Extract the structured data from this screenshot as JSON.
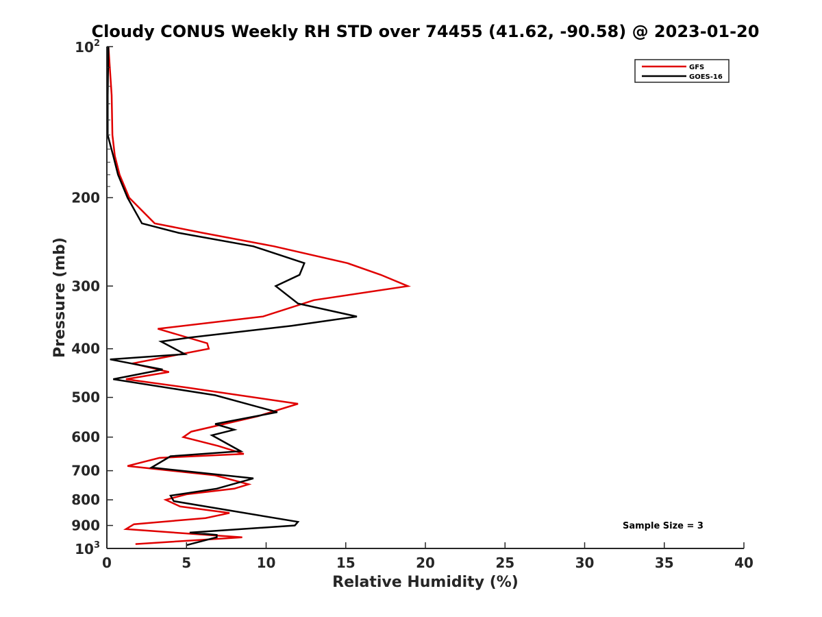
{
  "chart_data": {
    "type": "line",
    "title": "Cloudy CONUS Weekly RH STD over 74455 (41.62, -90.58) @ 2023-01-20",
    "xlabel": "Relative Humidity (%)",
    "ylabel": "Pressure (mb)",
    "xlim": [
      0,
      40
    ],
    "ylim": [
      100,
      1000
    ],
    "y_scale": "log",
    "y_reversed": true,
    "x_ticks": [
      "0",
      "5",
      "10",
      "15",
      "20",
      "25",
      "30",
      "35",
      "40"
    ],
    "y_ticks": [
      {
        "value": 100,
        "base": "10",
        "exp": "2"
      },
      {
        "value": 200,
        "label": "200"
      },
      {
        "value": 300,
        "label": "300"
      },
      {
        "value": 400,
        "label": "400"
      },
      {
        "value": 500,
        "label": "500"
      },
      {
        "value": 600,
        "label": "600"
      },
      {
        "value": 700,
        "label": "700"
      },
      {
        "value": 800,
        "label": "800"
      },
      {
        "value": 900,
        "label": "900"
      },
      {
        "value": 1000,
        "base": "10",
        "exp": "3"
      }
    ],
    "legend_position": "top-right",
    "grid": false,
    "series": [
      {
        "name": "GFS",
        "color": "#e00000",
        "points": [
          [
            0.1,
            100
          ],
          [
            0.3,
            125
          ],
          [
            0.35,
            150
          ],
          [
            0.5,
            165
          ],
          [
            0.8,
            180
          ],
          [
            1.4,
            200
          ],
          [
            3.0,
            225
          ],
          [
            6.0,
            235
          ],
          [
            10.5,
            250
          ],
          [
            15.1,
            270
          ],
          [
            17.2,
            285
          ],
          [
            18.9,
            300
          ],
          [
            13.0,
            320
          ],
          [
            9.8,
            345
          ],
          [
            3.2,
            365
          ],
          [
            6.3,
            390
          ],
          [
            6.4,
            400
          ],
          [
            1.6,
            428
          ],
          [
            3.9,
            445
          ],
          [
            1.2,
            460
          ],
          [
            5.0,
            478
          ],
          [
            12.0,
            515
          ],
          [
            9.5,
            545
          ],
          [
            5.3,
            585
          ],
          [
            4.8,
            600
          ],
          [
            7.0,
            625
          ],
          [
            8.6,
            648
          ],
          [
            3.3,
            660
          ],
          [
            1.3,
            685
          ],
          [
            6.8,
            715
          ],
          [
            8.9,
            745
          ],
          [
            8.0,
            760
          ],
          [
            5.0,
            780
          ],
          [
            3.7,
            800
          ],
          [
            4.6,
            825
          ],
          [
            7.7,
            850
          ],
          [
            6.2,
            870
          ],
          [
            1.7,
            895
          ],
          [
            1.2,
            915
          ],
          [
            6.3,
            940
          ],
          [
            8.5,
            950
          ],
          [
            1.8,
            980
          ]
        ]
      },
      {
        "name": "GOES-16",
        "color": "#000000",
        "points": [
          [
            0.1,
            100
          ],
          [
            0.05,
            125
          ],
          [
            0.05,
            150
          ],
          [
            0.4,
            165
          ],
          [
            0.7,
            180
          ],
          [
            1.3,
            200
          ],
          [
            2.2,
            225
          ],
          [
            4.5,
            235
          ],
          [
            9.2,
            250
          ],
          [
            12.4,
            270
          ],
          [
            12.1,
            285
          ],
          [
            10.6,
            300
          ],
          [
            12.0,
            325
          ],
          [
            15.7,
            345
          ],
          [
            11.6,
            360
          ],
          [
            5.2,
            380
          ],
          [
            3.4,
            387
          ],
          [
            4.9,
            410
          ],
          [
            0.2,
            420
          ],
          [
            3.5,
            440
          ],
          [
            0.4,
            460
          ],
          [
            6.8,
            495
          ],
          [
            10.7,
            535
          ],
          [
            6.8,
            565
          ],
          [
            8.0,
            580
          ],
          [
            6.6,
            595
          ],
          [
            8.4,
            640
          ],
          [
            4.0,
            655
          ],
          [
            2.8,
            690
          ],
          [
            9.2,
            725
          ],
          [
            6.9,
            760
          ],
          [
            4.0,
            785
          ],
          [
            4.2,
            805
          ],
          [
            12.0,
            885
          ],
          [
            11.8,
            900
          ],
          [
            5.2,
            930
          ],
          [
            6.9,
            940
          ],
          [
            6.9,
            950
          ],
          [
            5.0,
            985
          ]
        ]
      }
    ],
    "annotations": [
      "Sample Size = 3"
    ]
  }
}
